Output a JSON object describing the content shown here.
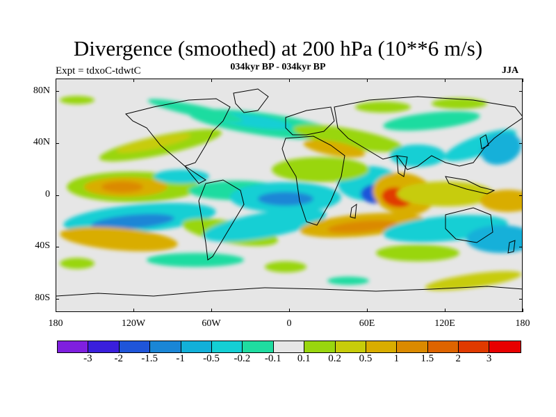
{
  "title": "Divergence (smoothed) at 200 hPa (10**6 m/s)",
  "subtitle": "034kyr BP - 034kyr BP",
  "experiment": "Expt = tdxoC-tdwtC",
  "season": "JJA",
  "latitude_labels": [
    "80N",
    "40N",
    "0",
    "40S",
    "80S"
  ],
  "longitude_labels": [
    "180",
    "120W",
    "60W",
    "0",
    "60E",
    "120E",
    "180"
  ],
  "colorbar": {
    "colors": [
      "#7f1fdf",
      "#3a1fdc",
      "#1f55d9",
      "#1a86d6",
      "#12b0d9",
      "#14cfd4",
      "#1fdca0",
      "#e6e6e6",
      "#99d60f",
      "#c7cc0a",
      "#d9ad00",
      "#db8a00",
      "#de6400",
      "#e03a00",
      "#e80000"
    ],
    "labels": [
      "-3",
      "-2",
      "-1.5",
      "-1",
      "-0.5",
      "-0.2",
      "-0.1",
      "0.1",
      "0.2",
      "0.5",
      "1",
      "1.5",
      "2",
      "3"
    ]
  },
  "map_colors": {
    "neutral": "#e6e6e6",
    "weak_pos": "#99d60f",
    "mod_pos": "#c7cc0a",
    "pos": "#d9ad00",
    "strong_pos": "#db8a00",
    "very_pos": "#e03a00",
    "weak_neg": "#1fdca0",
    "mod_neg": "#14cfd4",
    "neg": "#12b0d9",
    "strong_neg": "#1a86d6",
    "very_neg": "#1f55d9",
    "coast": "#000000"
  }
}
